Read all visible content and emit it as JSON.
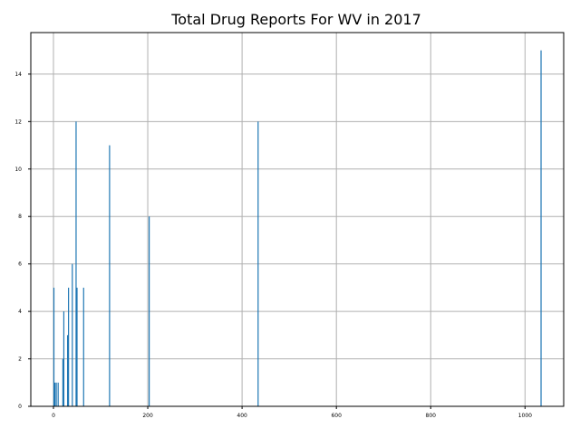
{
  "chart_data": {
    "type": "bar",
    "title": "Total Drug Reports For WV in 2017",
    "xlabel": "",
    "ylabel": "",
    "xlim": [
      -48,
      1082
    ],
    "ylim": [
      0,
      15.75
    ],
    "x_ticks": [
      0,
      200,
      400,
      600,
      800,
      1000
    ],
    "y_ticks": [
      0,
      2,
      4,
      6,
      8,
      10,
      12,
      14
    ],
    "grid": true,
    "legend": "none",
    "bar_color": "#1f77b4",
    "bars": [
      {
        "x": 1,
        "value": 5
      },
      {
        "x": 3,
        "value": 1
      },
      {
        "x": 6,
        "value": 1
      },
      {
        "x": 10,
        "value": 1
      },
      {
        "x": 20,
        "value": 2
      },
      {
        "x": 22,
        "value": 4
      },
      {
        "x": 30,
        "value": 3
      },
      {
        "x": 32,
        "value": 5
      },
      {
        "x": 40,
        "value": 6
      },
      {
        "x": 48,
        "value": 12
      },
      {
        "x": 50,
        "value": 5
      },
      {
        "x": 64,
        "value": 5
      },
      {
        "x": 119,
        "value": 11
      },
      {
        "x": 203,
        "value": 8
      },
      {
        "x": 434,
        "value": 12
      },
      {
        "x": 1034,
        "value": 15
      }
    ]
  }
}
